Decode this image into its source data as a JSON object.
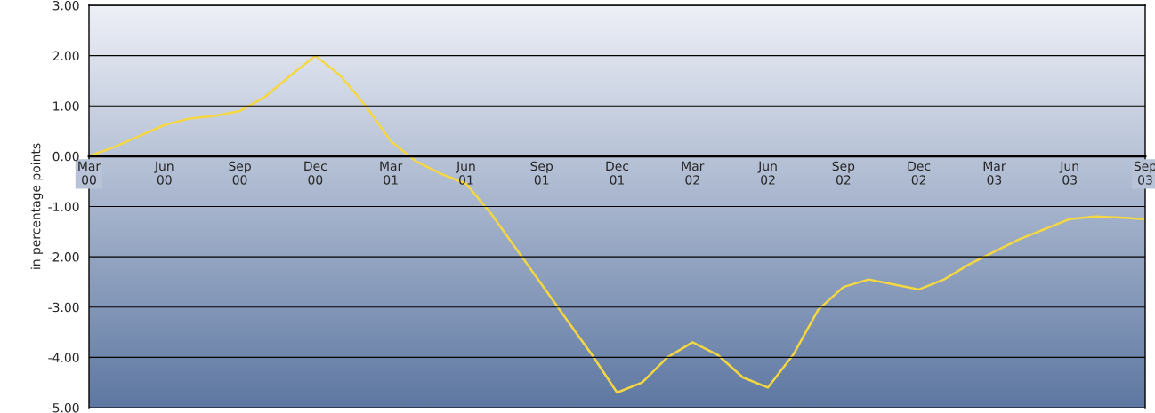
{
  "chart_data": {
    "type": "line",
    "ylabel": "in percentage points",
    "categories": [
      "Mar\n00",
      null,
      null,
      "Jun\n00",
      null,
      null,
      "Sep\n00",
      null,
      null,
      "Dec\n00",
      null,
      null,
      "Mar\n01",
      null,
      null,
      "Jun\n01",
      null,
      null,
      "Sep\n01",
      null,
      null,
      "Dec\n01",
      null,
      null,
      "Mar\n02",
      null,
      null,
      "Jun\n02",
      null,
      null,
      "Sep\n02",
      null,
      null,
      "Dec\n02",
      null,
      null,
      "Mar\n03",
      null,
      null,
      "Jun\n03",
      null,
      null,
      "Sep\n03"
    ],
    "series": [
      {
        "color": "#f5d742",
        "values": [
          0.0,
          0.18,
          0.4,
          0.62,
          0.75,
          0.8,
          0.9,
          1.18,
          1.6,
          2.0,
          1.6,
          1.0,
          0.3,
          -0.1,
          -0.35,
          -0.55,
          -1.15,
          -1.85,
          -2.55,
          -3.25,
          -3.95,
          -4.7,
          -4.5,
          -4.0,
          -3.7,
          -3.95,
          -4.4,
          -4.6,
          -3.95,
          -3.05,
          -2.6,
          -2.45,
          -2.55,
          -2.65,
          -2.45,
          -2.15,
          -1.9,
          -1.65,
          -1.45,
          -1.25,
          -1.2,
          -1.22,
          -1.25
        ]
      }
    ],
    "ylim": [
      -5,
      3
    ],
    "yticks": [
      {
        "value": -5,
        "label": "-5.00"
      },
      {
        "value": -4,
        "label": "-4.00"
      },
      {
        "value": -3,
        "label": "-3.00"
      },
      {
        "value": -2,
        "label": "-2.00"
      },
      {
        "value": -1,
        "label": "-1.00"
      },
      {
        "value": 0,
        "label": "0.00"
      },
      {
        "value": 1,
        "label": "1.00"
      },
      {
        "value": 2,
        "label": "2.00"
      },
      {
        "value": 3,
        "label": "3.00"
      }
    ],
    "grid": "y",
    "legend": false
  }
}
